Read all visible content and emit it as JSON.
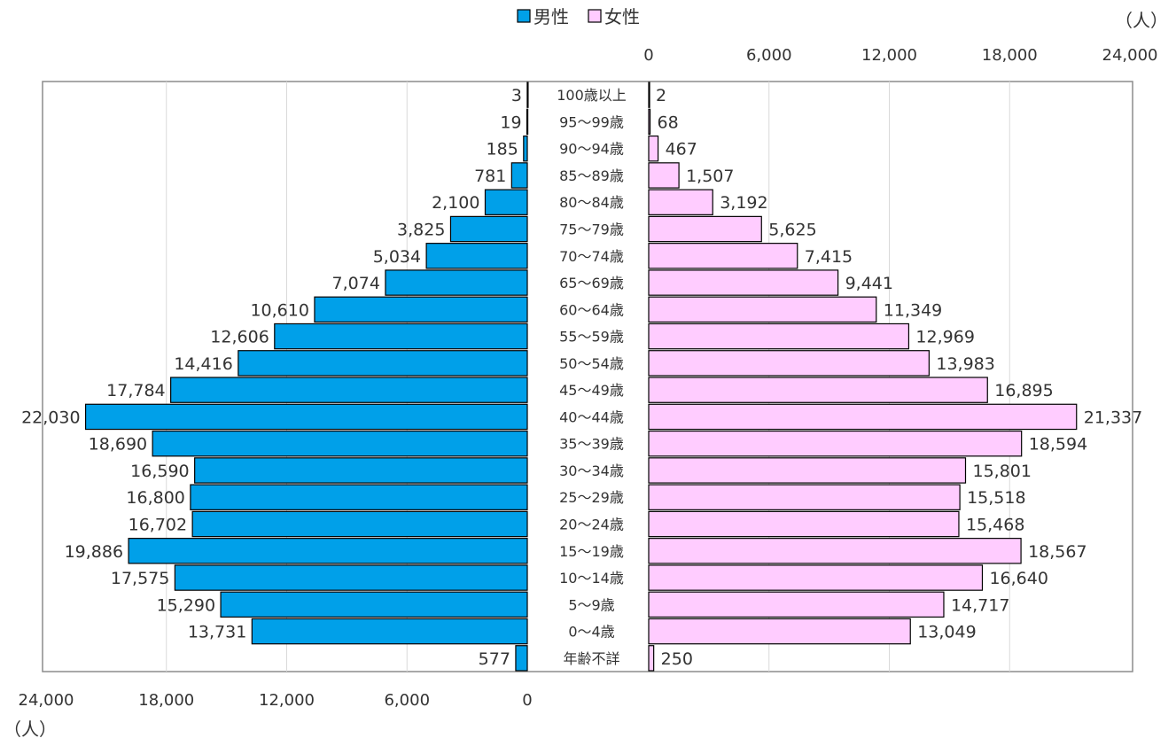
{
  "chart_data": {
    "type": "bar",
    "orientation": "horizontal",
    "layout": "population-pyramid",
    "unit_label_top": "（人）",
    "unit_label_bottom": "（人）",
    "legend": {
      "placement": "top-center",
      "entries": [
        {
          "name": "男性",
          "color": "#00A0E9"
        },
        {
          "name": "女性",
          "color": "#FFCCFF"
        }
      ]
    },
    "categories": [
      "100歳以上",
      "95～99歳",
      "90～94歳",
      "85～89歳",
      "80～84歳",
      "75～79歳",
      "70～74歳",
      "65～69歳",
      "60～64歳",
      "55～59歳",
      "50～54歳",
      "45～49歳",
      "40～44歳",
      "35～39歳",
      "30～34歳",
      "25～29歳",
      "20～24歳",
      "15～19歳",
      "10～14歳",
      "5～9歳",
      "0～4歳",
      "年齢不詳"
    ],
    "series": [
      {
        "name": "男性",
        "side": "left",
        "color": "#00A0E9",
        "values": [
          3,
          19,
          185,
          781,
          2100,
          3825,
          5034,
          7074,
          10610,
          12606,
          14416,
          17784,
          22030,
          18690,
          16590,
          16800,
          16702,
          19886,
          17575,
          15290,
          13731,
          577
        ],
        "labels": [
          "3",
          "19",
          "185",
          "781",
          "2,100",
          "3,825",
          "5,034",
          "7,074",
          "10,610",
          "12,606",
          "14,416",
          "17,784",
          "22,030",
          "18,690",
          "16,590",
          "16,800",
          "16,702",
          "19,886",
          "17,575",
          "15,290",
          "13,731",
          "577"
        ]
      },
      {
        "name": "女性",
        "side": "right",
        "color": "#FFCCFF",
        "values": [
          2,
          68,
          467,
          1507,
          3192,
          5625,
          7415,
          9441,
          11349,
          12969,
          13983,
          16895,
          21337,
          18594,
          15801,
          15518,
          15468,
          18567,
          16640,
          14717,
          13049,
          250
        ],
        "labels": [
          "2",
          "68",
          "467",
          "1,507",
          "3,192",
          "5,625",
          "7,415",
          "9,441",
          "11,349",
          "12,969",
          "13,983",
          "16,895",
          "21,337",
          "18,594",
          "15,801",
          "15,518",
          "15,468",
          "18,567",
          "16,640",
          "14,717",
          "13,049",
          "250"
        ]
      }
    ],
    "left_axis": {
      "range": [
        0,
        24000
      ],
      "reversed": true,
      "ticks": [
        "24,000",
        "18,000",
        "12,000",
        "6,000",
        "0"
      ],
      "tick_values": [
        24000,
        18000,
        12000,
        6000,
        0
      ],
      "position": "bottom"
    },
    "right_axis": {
      "range": [
        0,
        24000
      ],
      "ticks": [
        "0",
        "6,000",
        "12,000",
        "18,000",
        "24,000"
      ],
      "tick_values": [
        0,
        6000,
        12000,
        18000,
        24000
      ],
      "position": "top"
    },
    "grid": true
  }
}
